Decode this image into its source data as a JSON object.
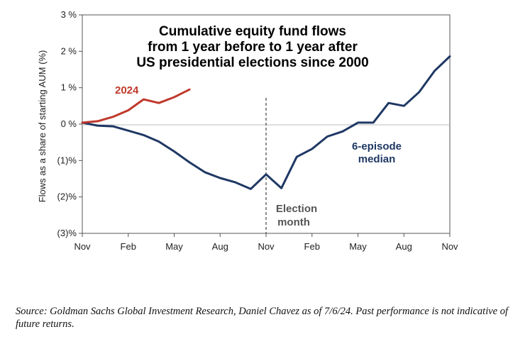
{
  "chart_data": {
    "type": "line",
    "title": [
      "Cumulative equity fund flows",
      "from 1 year before to 1 year after",
      "US presidential elections since 2000"
    ],
    "ylabel": "Flows as a share of starting AUM (%)",
    "xlabel": "",
    "x_tick_labels": [
      "Nov",
      "Feb",
      "May",
      "Aug",
      "Nov",
      "Feb",
      "May",
      "Aug",
      "Nov"
    ],
    "x_tick_positions": [
      0,
      3,
      6,
      9,
      12,
      15,
      18,
      21,
      24
    ],
    "y_ticks": [
      3,
      2,
      1,
      0,
      -1,
      -2,
      -3
    ],
    "y_tick_labels": [
      "3 %",
      "2 %",
      "1 %",
      "0 %",
      "(1)%",
      "(2)%",
      "(3)%"
    ],
    "ylim": [
      -3,
      3
    ],
    "xlim": [
      0,
      24
    ],
    "grid": false,
    "legend": "none",
    "series": [
      {
        "name": "6-episode median",
        "color": "#1f3864",
        "x": [
          0,
          1,
          2,
          3,
          4,
          5,
          6,
          7,
          8,
          9,
          10,
          11,
          12,
          13,
          14,
          15,
          16,
          17,
          18,
          19,
          20,
          21,
          22,
          23,
          24
        ],
        "y": [
          0.04,
          -0.04,
          -0.06,
          -0.18,
          -0.3,
          -0.48,
          -0.75,
          -1.05,
          -1.32,
          -1.48,
          -1.6,
          -1.78,
          -1.38,
          -1.76,
          -0.9,
          -0.68,
          -0.34,
          -0.2,
          0.04,
          0.04,
          0.58,
          0.5,
          0.88,
          1.46,
          1.86
        ]
      },
      {
        "name": "2024",
        "color": "#c0392b",
        "x": [
          0,
          1,
          2,
          3,
          4,
          5,
          6,
          7
        ],
        "y": [
          0.04,
          0.08,
          0.2,
          0.38,
          0.68,
          0.58,
          0.74,
          0.95
        ]
      }
    ],
    "annotations": [
      {
        "text": "2024",
        "color": "#c0392b"
      },
      {
        "text": [
          "6-episode",
          "median"
        ],
        "color": "#1f3864"
      },
      {
        "text": [
          "Election",
          "month"
        ],
        "color": "#555555"
      }
    ],
    "election_month_x": 12
  },
  "source_note": "Source: Goldman Sachs Global Investment Research, Daniel Chavez  as of 7/6/24. Past performance is not indicative of future returns."
}
